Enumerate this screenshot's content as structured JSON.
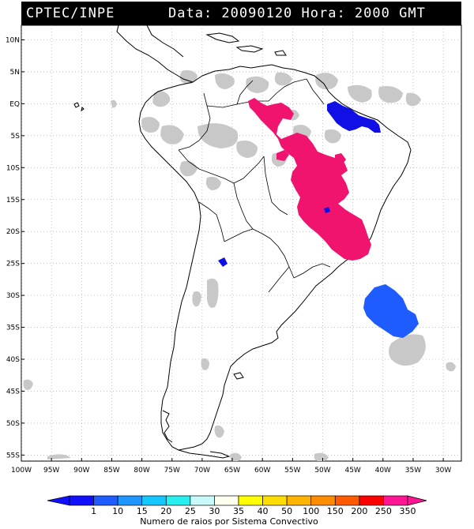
{
  "header": {
    "source": "CPTEC/INPE",
    "datetime": "Data: 20090120 Hora: 2000 GMT"
  },
  "map": {
    "lat_ticks": [
      "10N",
      "5N",
      "EQ",
      "5S",
      "10S",
      "15S",
      "20S",
      "25S",
      "30S",
      "35S",
      "40S",
      "45S",
      "50S",
      "55S"
    ],
    "lon_ticks": [
      "100W",
      "95W",
      "90W",
      "85W",
      "80W",
      "75W",
      "70W",
      "65W",
      "60W",
      "55W",
      "50W",
      "45W",
      "40W",
      "35W",
      "30W"
    ],
    "lat_range": [
      12,
      -57
    ],
    "lon_range": [
      -100,
      -27
    ],
    "gridlines": "dotted"
  },
  "colorbar": {
    "labels": [
      "1",
      "10",
      "15",
      "20",
      "25",
      "30",
      "35",
      "40",
      "50",
      "100",
      "150",
      "200",
      "250",
      "350"
    ],
    "colors": [
      "#1010ff",
      "#1e5cff",
      "#1e96ff",
      "#14c8ff",
      "#28f0f0",
      "#c8fafa",
      "#fffff0",
      "#ffff00",
      "#ffdc00",
      "#ffb400",
      "#ff8c00",
      "#ff5a00",
      "#ff0000",
      "#ff1493"
    ],
    "title": "Numero de raios por Sistema Convectivo"
  },
  "colors": {
    "land_outline": "#000000",
    "cloud": "#c8c8c8",
    "magenta_system": "#f0146e",
    "dark_blue_system": "#1010e6",
    "mid_blue_system": "#1e5cff"
  }
}
